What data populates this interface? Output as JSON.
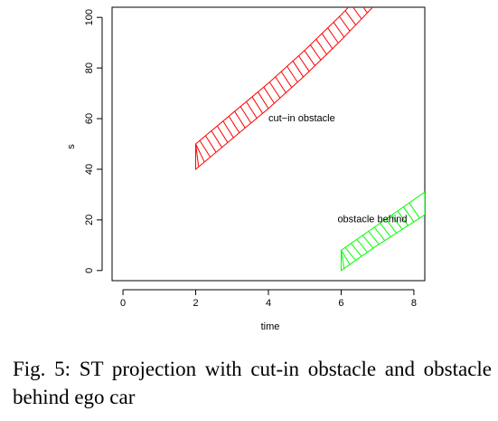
{
  "chart_data": {
    "type": "area",
    "title": "",
    "xlabel": "time",
    "ylabel": "s",
    "xlim": [
      -0.3,
      8.3
    ],
    "ylim": [
      -4,
      104
    ],
    "x_ticks": [
      0,
      2,
      4,
      6,
      8
    ],
    "y_ticks": [
      0,
      20,
      40,
      60,
      80,
      100
    ],
    "grid": false,
    "series": [
      {
        "color": "#ff0000",
        "fill": "diagonal-hatch",
        "lower": [
          [
            2,
            40
          ],
          [
            3,
            52
          ],
          [
            4,
            64
          ],
          [
            5,
            77
          ],
          [
            6,
            91
          ],
          [
            7,
            106
          ]
        ],
        "upper": [
          [
            2,
            50
          ],
          [
            3,
            62
          ],
          [
            4,
            74
          ],
          [
            5,
            87
          ],
          [
            6,
            101
          ],
          [
            7,
            116
          ]
        ]
      },
      {
        "color": "#00ff00",
        "fill": "diagonal-hatch",
        "lower": [
          [
            6,
            0
          ],
          [
            7,
            10
          ],
          [
            8.3,
            22
          ]
        ],
        "upper": [
          [
            6,
            8
          ],
          [
            7,
            18
          ],
          [
            8.3,
            31
          ]
        ]
      }
    ],
    "annotations": [
      {
        "text": "cut−in obstacle",
        "x": 4.0,
        "y": 59
      },
      {
        "text": "obstacle behind",
        "x": 5.9,
        "y": 19
      }
    ]
  },
  "caption": "Fig. 5: ST projection with cut-in obstacle and obstacle behind ego car"
}
